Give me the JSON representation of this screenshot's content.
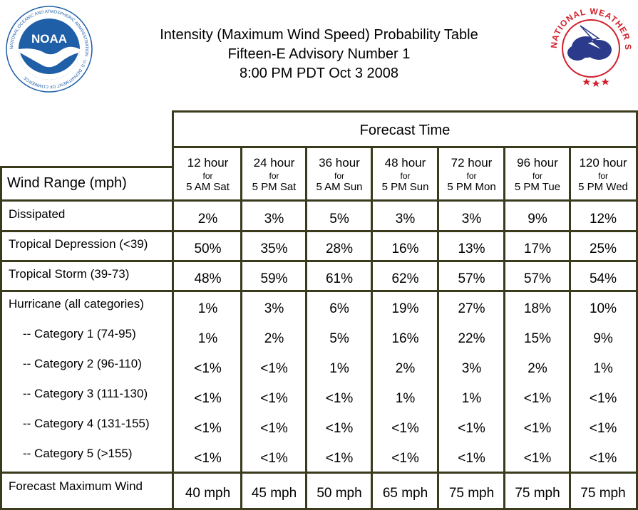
{
  "header": {
    "title_line1": "Intensity (Maximum Wind Speed) Probability Table",
    "title_line2": "Fifteen-E Advisory Number 1",
    "title_line3": "8:00 PM PDT Oct 3 2008"
  },
  "logos": {
    "noaa_text": "NOAA",
    "noaa_ring_text": "NATIONAL OCEANIC AND ATMOSPHERIC ADMINISTRATION · U.S. DEPARTMENT OF COMMERCE",
    "nws_ring_text": "NATIONAL WEATHER SERVICE"
  },
  "colors": {
    "border": "#3a3a1c",
    "noaa_blue": "#1f5fa8",
    "nws_red": "#d21f2b",
    "nws_blue": "#2b3a8a"
  },
  "chart_data": {
    "type": "table",
    "forecast_time_label": "Forecast Time",
    "row_header_label": "Wind Range (mph)",
    "columns": [
      {
        "hours": "12 hour",
        "for": "for",
        "when": "5 AM Sat"
      },
      {
        "hours": "24 hour",
        "for": "for",
        "when": "5 PM Sat"
      },
      {
        "hours": "36 hour",
        "for": "for",
        "when": "5 AM Sun"
      },
      {
        "hours": "48 hour",
        "for": "for",
        "when": "5 PM Sun"
      },
      {
        "hours": "72 hour",
        "for": "for",
        "when": "5 PM Mon"
      },
      {
        "hours": "96 hour",
        "for": "for",
        "when": "5 PM Tue"
      },
      {
        "hours": "120 hour",
        "for": "for",
        "when": "5 PM Wed"
      }
    ],
    "rows": [
      {
        "label": "Dissipated",
        "values": [
          "2%",
          "3%",
          "5%",
          "3%",
          "3%",
          "9%",
          "12%"
        ]
      },
      {
        "label": "Tropical Depression (<39)",
        "values": [
          "50%",
          "35%",
          "28%",
          "16%",
          "13%",
          "17%",
          "25%"
        ]
      },
      {
        "label": "Tropical Storm (39-73)",
        "values": [
          "48%",
          "59%",
          "61%",
          "62%",
          "57%",
          "57%",
          "54%"
        ]
      },
      {
        "label": "Hurricane (all categories)",
        "values": [
          "1%",
          "3%",
          "6%",
          "19%",
          "27%",
          "18%",
          "10%"
        ]
      },
      {
        "label": "-- Category 1 (74-95)",
        "values": [
          "1%",
          "2%",
          "5%",
          "16%",
          "22%",
          "15%",
          "9%"
        ]
      },
      {
        "label": "-- Category 2 (96-110)",
        "values": [
          "<1%",
          "<1%",
          "1%",
          "2%",
          "3%",
          "2%",
          "1%"
        ]
      },
      {
        "label": "-- Category 3 (111-130)",
        "values": [
          "<1%",
          "<1%",
          "<1%",
          "1%",
          "1%",
          "<1%",
          "<1%"
        ]
      },
      {
        "label": "-- Category 4 (131-155)",
        "values": [
          "<1%",
          "<1%",
          "<1%",
          "<1%",
          "<1%",
          "<1%",
          "<1%"
        ]
      },
      {
        "label": "-- Category 5 (>155)",
        "values": [
          "<1%",
          "<1%",
          "<1%",
          "<1%",
          "<1%",
          "<1%",
          "<1%"
        ]
      },
      {
        "label": "Forecast Maximum Wind",
        "values": [
          "40 mph",
          "45 mph",
          "50 mph",
          "65 mph",
          "75 mph",
          "75 mph",
          "75 mph"
        ]
      }
    ]
  }
}
